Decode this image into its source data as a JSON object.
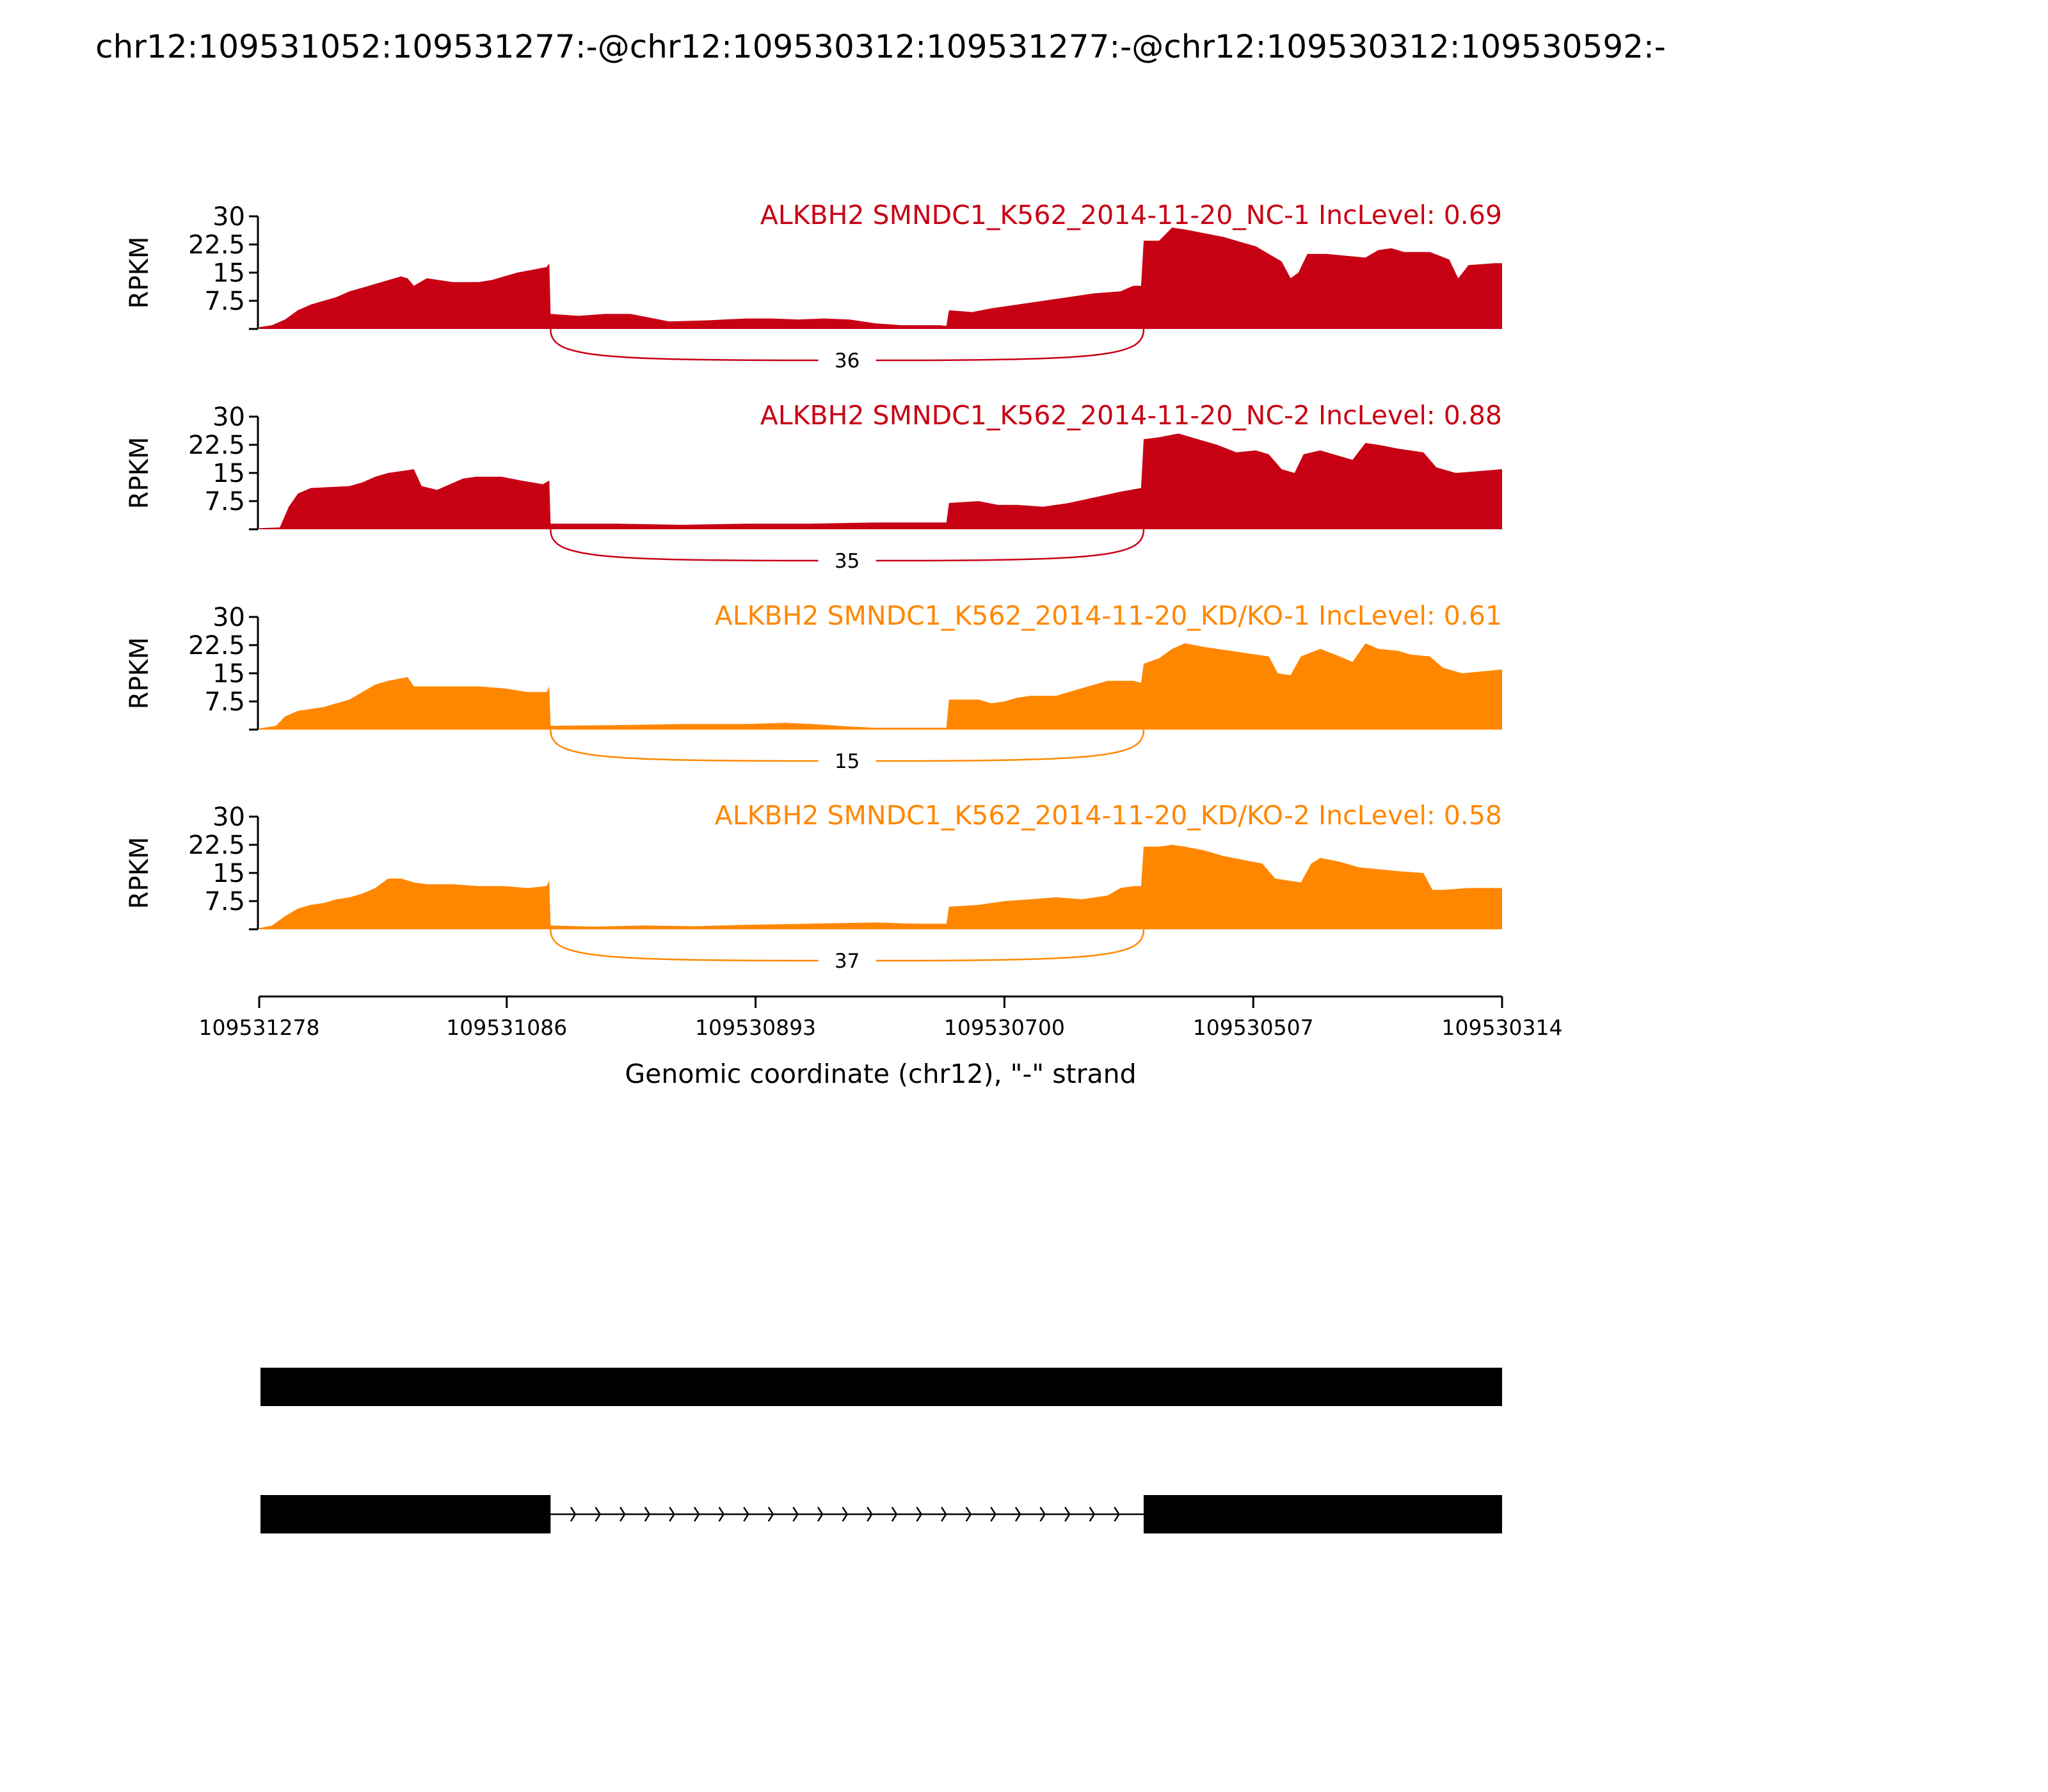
{
  "figure_title": "chr12:109531052:109531277:-@chr12:109530312:109531277:-@chr12:109530312:109530592:-",
  "chart_data": {
    "type": "area",
    "title": "chr12:109531052:109531277:-@chr12:109530312:109531277:-@chr12:109530312:109530592:-",
    "xlabel": "Genomic coordinate (chr12), \"-\" strand",
    "ylabel": "RPKM",
    "x_axis": {
      "direction": "descending (minus strand)",
      "xlim": [
        109531278,
        109530314
      ],
      "ticks": [
        109531278,
        109531086,
        109530893,
        109530700,
        109530507,
        109530314
      ],
      "tick_labels": [
        "109531278",
        "109531086",
        "109530893",
        "109530700",
        "109530507",
        "109530314"
      ]
    },
    "y_axis": {
      "ylim": [
        0,
        30
      ],
      "ticks": [
        7.5,
        15,
        22.5,
        30
      ],
      "tick_labels": [
        "7.5",
        "15",
        "22.5",
        "30"
      ]
    },
    "grid": false,
    "tracks": [
      {
        "label": "ALKBH2 SMNDC1_K562_2014-11-20_NC-1 IncLevel: 0.69",
        "color": "#c80014",
        "junction": {
          "from": 109531052,
          "to": 109530592,
          "count": 36,
          "count_label": "36"
        },
        "coverage": [
          [
            109531278,
            0.5
          ],
          [
            109531268,
            1
          ],
          [
            109531258,
            2.5
          ],
          [
            109531248,
            5
          ],
          [
            109531238,
            6.5
          ],
          [
            109531228,
            7.5
          ],
          [
            109531218,
            8.5
          ],
          [
            109531208,
            10
          ],
          [
            109531198,
            11
          ],
          [
            109531188,
            12
          ],
          [
            109531178,
            13
          ],
          [
            109531168,
            14
          ],
          [
            109531163,
            13.5
          ],
          [
            109531158,
            11.5
          ],
          [
            109531148,
            13.5
          ],
          [
            109531138,
            13
          ],
          [
            109531128,
            12.5
          ],
          [
            109531118,
            12.5
          ],
          [
            109531108,
            12.5
          ],
          [
            109531098,
            13
          ],
          [
            109531088,
            14
          ],
          [
            109531078,
            15
          ],
          [
            109531055,
            16.5
          ],
          [
            109531053,
            17.5
          ],
          [
            109531052,
            4
          ],
          [
            109531030,
            3.5
          ],
          [
            109531010,
            4
          ],
          [
            109530990,
            4
          ],
          [
            109530975,
            3
          ],
          [
            109530960,
            2
          ],
          [
            109530930,
            2.3
          ],
          [
            109530900,
            2.8
          ],
          [
            109530880,
            2.8
          ],
          [
            109530860,
            2.5
          ],
          [
            109530840,
            2.8
          ],
          [
            109530820,
            2.5
          ],
          [
            109530800,
            1.5
          ],
          [
            109530780,
            1
          ],
          [
            109530750,
            1
          ],
          [
            109530745,
            0.8
          ],
          [
            109530743,
            5
          ],
          [
            109530725,
            4.5
          ],
          [
            109530710,
            5.5
          ],
          [
            109530690,
            6.5
          ],
          [
            109530670,
            7.5
          ],
          [
            109530650,
            8.5
          ],
          [
            109530630,
            9.5
          ],
          [
            109530610,
            10
          ],
          [
            109530600,
            11.5
          ],
          [
            109530594,
            11.5
          ],
          [
            109530592,
            23.5
          ],
          [
            109530580,
            23.5
          ],
          [
            109530570,
            27
          ],
          [
            109530560,
            26.5
          ],
          [
            109530545,
            25.5
          ],
          [
            109530530,
            24.5
          ],
          [
            109530515,
            23
          ],
          [
            109530505,
            22
          ],
          [
            109530495,
            20
          ],
          [
            109530485,
            18
          ],
          [
            109530478,
            13.5
          ],
          [
            109530472,
            15
          ],
          [
            109530465,
            20
          ],
          [
            109530450,
            20
          ],
          [
            109530435,
            19.5
          ],
          [
            109530420,
            19
          ],
          [
            109530410,
            21
          ],
          [
            109530400,
            21.5
          ],
          [
            109530390,
            20.5
          ],
          [
            109530370,
            20.5
          ],
          [
            109530355,
            18.5
          ],
          [
            109530348,
            13.5
          ],
          [
            109530340,
            17
          ],
          [
            109530320,
            17.5
          ],
          [
            109530314,
            17.5
          ]
        ]
      },
      {
        "label": "ALKBH2 SMNDC1_K562_2014-11-20_NC-2 IncLevel: 0.88",
        "color": "#c80014",
        "junction": {
          "from": 109531052,
          "to": 109530592,
          "count": 35,
          "count_label": "35"
        },
        "coverage": [
          [
            109531278,
            0.3
          ],
          [
            109531262,
            0.5
          ],
          [
            109531255,
            6
          ],
          [
            109531248,
            9.5
          ],
          [
            109531238,
            11
          ],
          [
            109531208,
            11.5
          ],
          [
            109531198,
            12.5
          ],
          [
            109531188,
            14
          ],
          [
            109531178,
            15
          ],
          [
            109531168,
            15.5
          ],
          [
            109531158,
            16
          ],
          [
            109531152,
            11.5
          ],
          [
            109531140,
            10.5
          ],
          [
            109531130,
            12
          ],
          [
            109531120,
            13.5
          ],
          [
            109531110,
            14
          ],
          [
            109531090,
            14
          ],
          [
            109531075,
            13
          ],
          [
            109531058,
            12
          ],
          [
            109531053,
            13
          ],
          [
            109531052,
            1.5
          ],
          [
            109531000,
            1.5
          ],
          [
            109530950,
            1.2
          ],
          [
            109530900,
            1.5
          ],
          [
            109530850,
            1.5
          ],
          [
            109530800,
            1.8
          ],
          [
            109530745,
            1.8
          ],
          [
            109530743,
            7
          ],
          [
            109530720,
            7.5
          ],
          [
            109530705,
            6.5
          ],
          [
            109530690,
            6.5
          ],
          [
            109530670,
            6
          ],
          [
            109530650,
            7
          ],
          [
            109530630,
            8.5
          ],
          [
            109530610,
            10
          ],
          [
            109530594,
            11
          ],
          [
            109530592,
            24
          ],
          [
            109530580,
            24.5
          ],
          [
            109530565,
            25.5
          ],
          [
            109530550,
            24
          ],
          [
            109530535,
            22.5
          ],
          [
            109530520,
            20.5
          ],
          [
            109530505,
            21
          ],
          [
            109530495,
            20
          ],
          [
            109530485,
            16
          ],
          [
            109530475,
            15
          ],
          [
            109530468,
            20
          ],
          [
            109530455,
            21
          ],
          [
            109530440,
            19.5
          ],
          [
            109530430,
            18.5
          ],
          [
            109530420,
            23
          ],
          [
            109530410,
            22.5
          ],
          [
            109530395,
            21.5
          ],
          [
            109530375,
            20.5
          ],
          [
            109530365,
            16.5
          ],
          [
            109530350,
            15
          ],
          [
            109530314,
            16
          ]
        ]
      },
      {
        "label": "ALKBH2 SMNDC1_K562_2014-11-20_KD/KO-1 IncLevel: 0.61",
        "color": "#ff8700",
        "junction": {
          "from": 109531052,
          "to": 109530592,
          "count": 15,
          "count_label": "15"
        },
        "coverage": [
          [
            109531278,
            0.3
          ],
          [
            109531265,
            1
          ],
          [
            109531258,
            3.5
          ],
          [
            109531248,
            5
          ],
          [
            109531238,
            5.5
          ],
          [
            109531228,
            6
          ],
          [
            109531218,
            7
          ],
          [
            109531208,
            8
          ],
          [
            109531198,
            10
          ],
          [
            109531188,
            12
          ],
          [
            109531178,
            13
          ],
          [
            109531170,
            13.5
          ],
          [
            109531163,
            14
          ],
          [
            109531158,
            11.5
          ],
          [
            109531148,
            11.5
          ],
          [
            109531128,
            11.5
          ],
          [
            109531108,
            11.5
          ],
          [
            109531088,
            11
          ],
          [
            109531070,
            10
          ],
          [
            109531055,
            10
          ],
          [
            109531053,
            11.5
          ],
          [
            109531052,
            1
          ],
          [
            109531000,
            1.2
          ],
          [
            109530950,
            1.5
          ],
          [
            109530900,
            1.5
          ],
          [
            109530870,
            1.8
          ],
          [
            109530850,
            1.5
          ],
          [
            109530820,
            0.8
          ],
          [
            109530800,
            0.5
          ],
          [
            109530745,
            0.5
          ],
          [
            109530743,
            8
          ],
          [
            109530720,
            8
          ],
          [
            109530710,
            7
          ],
          [
            109530700,
            7.5
          ],
          [
            109530690,
            8.5
          ],
          [
            109530680,
            9
          ],
          [
            109530660,
            9
          ],
          [
            109530650,
            10
          ],
          [
            109530635,
            11.5
          ],
          [
            109530620,
            13
          ],
          [
            109530600,
            13
          ],
          [
            109530594,
            12.5
          ],
          [
            109530592,
            17.5
          ],
          [
            109530580,
            19
          ],
          [
            109530570,
            21.5
          ],
          [
            109530560,
            23
          ],
          [
            109530545,
            22
          ],
          [
            109530525,
            21
          ],
          [
            109530505,
            20
          ],
          [
            109530495,
            19.5
          ],
          [
            109530488,
            15
          ],
          [
            109530478,
            14.5
          ],
          [
            109530470,
            19.5
          ],
          [
            109530455,
            21.5
          ],
          [
            109530440,
            19.5
          ],
          [
            109530430,
            18
          ],
          [
            109530420,
            23
          ],
          [
            109530410,
            21.5
          ],
          [
            109530395,
            21
          ],
          [
            109530385,
            20
          ],
          [
            109530370,
            19.5
          ],
          [
            109530360,
            16.5
          ],
          [
            109530345,
            15
          ],
          [
            109530314,
            16
          ]
        ]
      },
      {
        "label": "ALKBH2 SMNDC1_K562_2014-11-20_KD/KO-2 IncLevel: 0.58",
        "color": "#ff8700",
        "junction": {
          "from": 109531052,
          "to": 109530592,
          "count": 37,
          "count_label": "37"
        },
        "coverage": [
          [
            109531278,
            0.3
          ],
          [
            109531268,
            1
          ],
          [
            109531258,
            3.5
          ],
          [
            109531248,
            5.5
          ],
          [
            109531238,
            6.5
          ],
          [
            109531228,
            7
          ],
          [
            109531218,
            8
          ],
          [
            109531208,
            8.5
          ],
          [
            109531198,
            9.5
          ],
          [
            109531188,
            11
          ],
          [
            109531178,
            13.5
          ],
          [
            109531168,
            13.5
          ],
          [
            109531158,
            12.5
          ],
          [
            109531148,
            12
          ],
          [
            109531128,
            12
          ],
          [
            109531108,
            11.5
          ],
          [
            109531088,
            11.5
          ],
          [
            109531070,
            11
          ],
          [
            109531055,
            11.5
          ],
          [
            109531053,
            13
          ],
          [
            109531052,
            1
          ],
          [
            109531020,
            0.7
          ],
          [
            109530980,
            1
          ],
          [
            109530940,
            0.8
          ],
          [
            109530900,
            1.2
          ],
          [
            109530850,
            1.5
          ],
          [
            109530800,
            1.8
          ],
          [
            109530770,
            1.5
          ],
          [
            109530745,
            1.5
          ],
          [
            109530743,
            6
          ],
          [
            109530720,
            6.5
          ],
          [
            109530700,
            7.5
          ],
          [
            109530680,
            8
          ],
          [
            109530660,
            8.5
          ],
          [
            109530640,
            8
          ],
          [
            109530620,
            9
          ],
          [
            109530610,
            11
          ],
          [
            109530600,
            11.5
          ],
          [
            109530594,
            11.5
          ],
          [
            109530592,
            22
          ],
          [
            109530580,
            22
          ],
          [
            109530570,
            22.5
          ],
          [
            109530560,
            22
          ],
          [
            109530545,
            21
          ],
          [
            109530530,
            19.5
          ],
          [
            109530515,
            18.5
          ],
          [
            109530500,
            17.5
          ],
          [
            109530490,
            13.5
          ],
          [
            109530470,
            12.5
          ],
          [
            109530462,
            17.5
          ],
          [
            109530455,
            19
          ],
          [
            109530440,
            18
          ],
          [
            109530425,
            16.5
          ],
          [
            109530410,
            16
          ],
          [
            109530395,
            15.5
          ],
          [
            109530375,
            15
          ],
          [
            109530368,
            10.5
          ],
          [
            109530360,
            10.5
          ],
          [
            109530340,
            11
          ],
          [
            109530314,
            11
          ]
        ]
      }
    ],
    "transcript_models": [
      {
        "exons": [
          [
            109531277,
            109530312
          ]
        ],
        "introns": []
      },
      {
        "exons": [
          [
            109531277,
            109531052
          ],
          [
            109530592,
            109530312
          ]
        ],
        "introns": [
          [
            109531052,
            109530592
          ]
        ]
      }
    ]
  }
}
